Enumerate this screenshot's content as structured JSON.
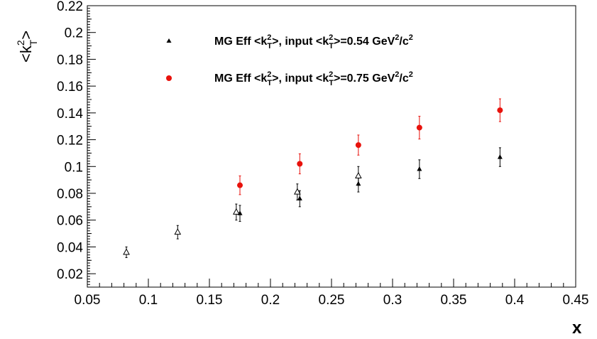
{
  "chart_data": {
    "type": "scatter",
    "title": "",
    "xlabel": "x",
    "xlim": [
      0.05,
      0.45
    ],
    "ylim": [
      0.01,
      0.22
    ],
    "grid": false,
    "legend_placement": "top-left",
    "x_ticks": [
      "0.05",
      "0.1",
      "0.15",
      "0.2",
      "0.25",
      "0.3",
      "0.35",
      "0.4",
      "0.45"
    ],
    "y_ticks": [
      "0.02",
      "0.04",
      "0.06",
      "0.08",
      "0.1",
      "0.12",
      "0.14",
      "0.16",
      "0.18",
      "0.2",
      "0.22"
    ],
    "series": [
      {
        "name": "MG Eff <k_T^2>, input <k_T^2>=0.54 GeV^2/c^2",
        "color": "#000000",
        "marker": "filled-triangle",
        "points": [
          {
            "x": 0.175,
            "y": 0.065,
            "err": 0.006
          },
          {
            "x": 0.224,
            "y": 0.076,
            "err": 0.006
          },
          {
            "x": 0.272,
            "y": 0.087,
            "err": 0.006
          },
          {
            "x": 0.322,
            "y": 0.098,
            "err": 0.007
          },
          {
            "x": 0.388,
            "y": 0.107,
            "err": 0.007
          }
        ]
      },
      {
        "name": "MG Eff <k_T^2>, input <k_T^2>=0.75 GeV^2/c^2",
        "color": "#e8120c",
        "marker": "filled-circle",
        "points": [
          {
            "x": 0.175,
            "y": 0.086,
            "err": 0.007
          },
          {
            "x": 0.224,
            "y": 0.102,
            "err": 0.0075
          },
          {
            "x": 0.272,
            "y": 0.116,
            "err": 0.0075
          },
          {
            "x": 0.322,
            "y": 0.129,
            "err": 0.0085
          },
          {
            "x": 0.388,
            "y": 0.142,
            "err": 0.0085
          }
        ]
      },
      {
        "color": "#000000",
        "marker": "open-triangle",
        "points": [
          {
            "x": 0.082,
            "y": 0.036,
            "err": 0.004
          },
          {
            "x": 0.124,
            "y": 0.051,
            "err": 0.005
          },
          {
            "x": 0.172,
            "y": 0.066,
            "err": 0.006
          },
          {
            "x": 0.222,
            "y": 0.081,
            "err": 0.006
          },
          {
            "x": 0.272,
            "y": 0.093,
            "err": 0.007
          }
        ]
      }
    ]
  },
  "labels": {
    "x_axis": "x",
    "y_axis_open": "<k",
    "y_axis_sup": "2",
    "y_axis_sub": "T",
    "y_axis_close": ">",
    "legend1_pre": "MG Eff <k",
    "legend1_sup": "2",
    "legend1_sub": "T",
    "legend1_mid": ">, input <k",
    "legend1_sup2": "2",
    "legend1_sub2": "T",
    "legend1_post": ">=0.54 GeV",
    "legend1_unit_sup": "2",
    "legend1_unit": "/c",
    "legend1_unit_sup2": "2",
    "legend2_pre": "MG Eff <k",
    "legend2_sup": "2",
    "legend2_sub": "T",
    "legend2_mid": ">, input <k",
    "legend2_sup2": "2",
    "legend2_sub2": "T",
    "legend2_post": ">=0.75 GeV",
    "legend2_unit_sup": "2",
    "legend2_unit": "/c",
    "legend2_unit_sup2": "2"
  }
}
